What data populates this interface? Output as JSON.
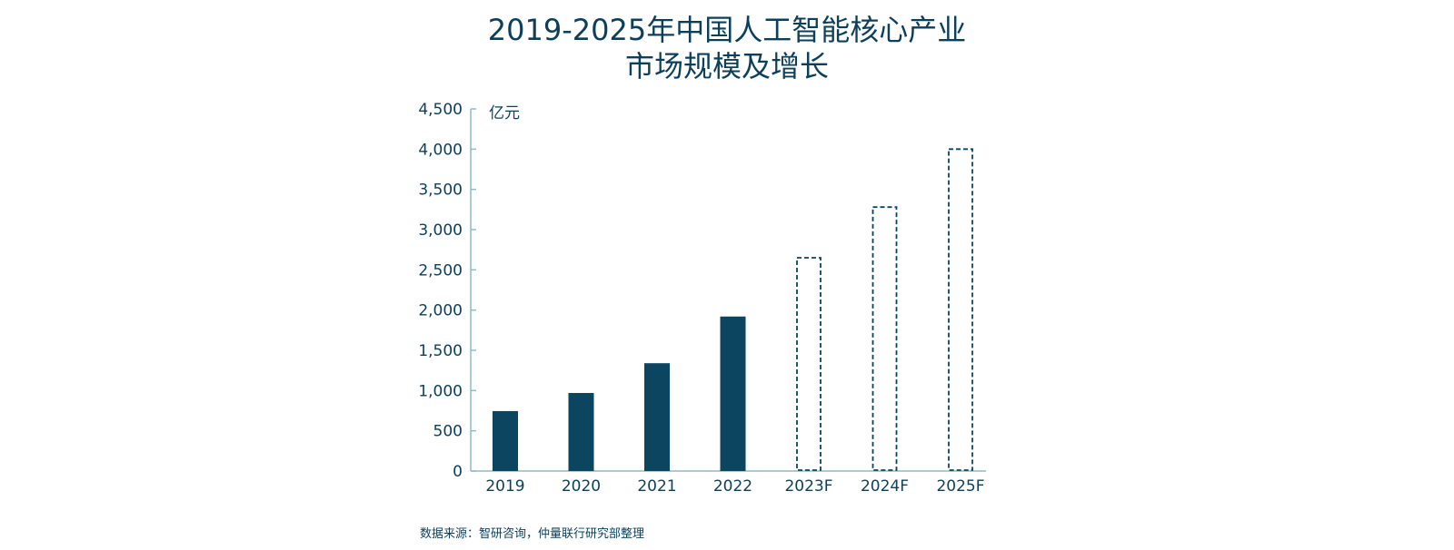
{
  "chart_data": {
    "type": "bar",
    "title_lines": [
      "2019-2025年中国人工智能核心产业",
      "市场规模及增长"
    ],
    "unit": "亿元",
    "categories": [
      "2019",
      "2020",
      "2021",
      "2022",
      "2023F",
      "2024F",
      "2025F"
    ],
    "values": [
      745,
      970,
      1340,
      1920,
      2650,
      3280,
      4000
    ],
    "forecast": [
      false,
      false,
      false,
      false,
      true,
      true,
      true
    ],
    "yticks": [
      "0",
      "500",
      "1,000",
      "1,500",
      "2,000",
      "2,500",
      "3,000",
      "3,500",
      "4,000",
      "4,500"
    ],
    "ylim": [
      0,
      4500
    ],
    "grid": false,
    "legend": "none",
    "source": "数据来源：智研咨询，仲量联行研究部整理"
  },
  "colors": {
    "bar": "#0b4560",
    "text": "#0b3f5a",
    "axis": "#8fbcc4"
  }
}
